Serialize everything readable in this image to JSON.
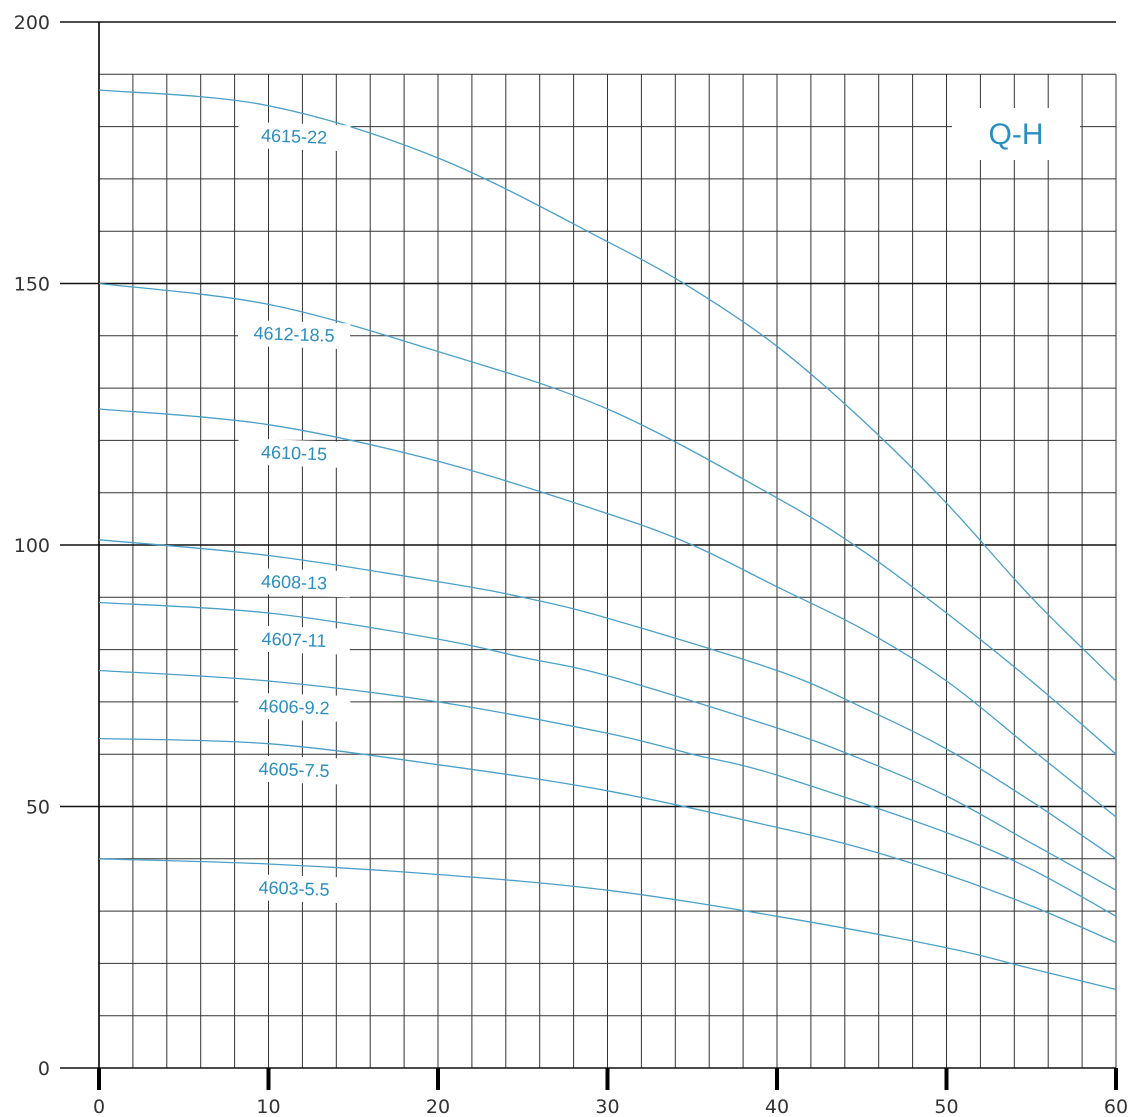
{
  "chart_data": {
    "type": "line",
    "title": "Q-H",
    "xlabel": "",
    "ylabel": "",
    "xlim": [
      0,
      60
    ],
    "ylim": [
      0,
      200
    ],
    "x_ticks": [
      "0",
      "10",
      "20",
      "30",
      "40",
      "50",
      "60"
    ],
    "y_ticks": [
      "0",
      "50",
      "100",
      "150",
      "200"
    ],
    "grid": true,
    "colors": {
      "curve": "#4aa0c8",
      "label": "#2a8fc0",
      "grid": "#333333",
      "axis": "#000000"
    },
    "series": [
      {
        "name": "4615-22",
        "x": [
          0,
          10,
          20,
          30,
          35,
          40,
          45,
          50,
          55,
          60
        ],
        "y": [
          187,
          184,
          174,
          158,
          149,
          138,
          124,
          108,
          90,
          74
        ]
      },
      {
        "name": "4612-18.5",
        "x": [
          0,
          10,
          20,
          30,
          40,
          45,
          50,
          55,
          60
        ],
        "y": [
          150,
          146,
          137,
          126,
          109,
          99,
          87,
          74,
          60
        ]
      },
      {
        "name": "4610-15",
        "x": [
          0,
          10,
          20,
          30,
          35,
          40,
          45,
          50,
          55,
          60
        ],
        "y": [
          126,
          123,
          116,
          106,
          100,
          92,
          84,
          74,
          61,
          48
        ]
      },
      {
        "name": "4608-13",
        "x": [
          0,
          10,
          20,
          25,
          30,
          40,
          45,
          50,
          55,
          60
        ],
        "y": [
          101,
          98,
          93,
          90,
          86,
          76,
          69,
          61,
          51,
          40
        ]
      },
      {
        "name": "4607-11",
        "x": [
          0,
          10,
          20,
          25,
          30,
          40,
          45,
          50,
          55,
          60
        ],
        "y": [
          89,
          87,
          82,
          78.5,
          75,
          65,
          59,
          52,
          43,
          34
        ]
      },
      {
        "name": "4606-9.2",
        "x": [
          0,
          10,
          20,
          30,
          35,
          40,
          50,
          55,
          60
        ],
        "y": [
          76,
          74,
          70,
          64,
          60,
          56,
          45,
          38,
          29
        ]
      },
      {
        "name": "4605-7.5",
        "x": [
          0,
          10,
          20,
          30,
          40,
          45,
          50,
          55,
          60
        ],
        "y": [
          63,
          62,
          58,
          53,
          46,
          42,
          37,
          31,
          24
        ]
      },
      {
        "name": "4603-5.5",
        "x": [
          0,
          10,
          20,
          30,
          40,
          50,
          55,
          60
        ],
        "y": [
          40,
          39,
          37,
          34,
          29,
          23,
          19,
          15
        ]
      }
    ]
  }
}
